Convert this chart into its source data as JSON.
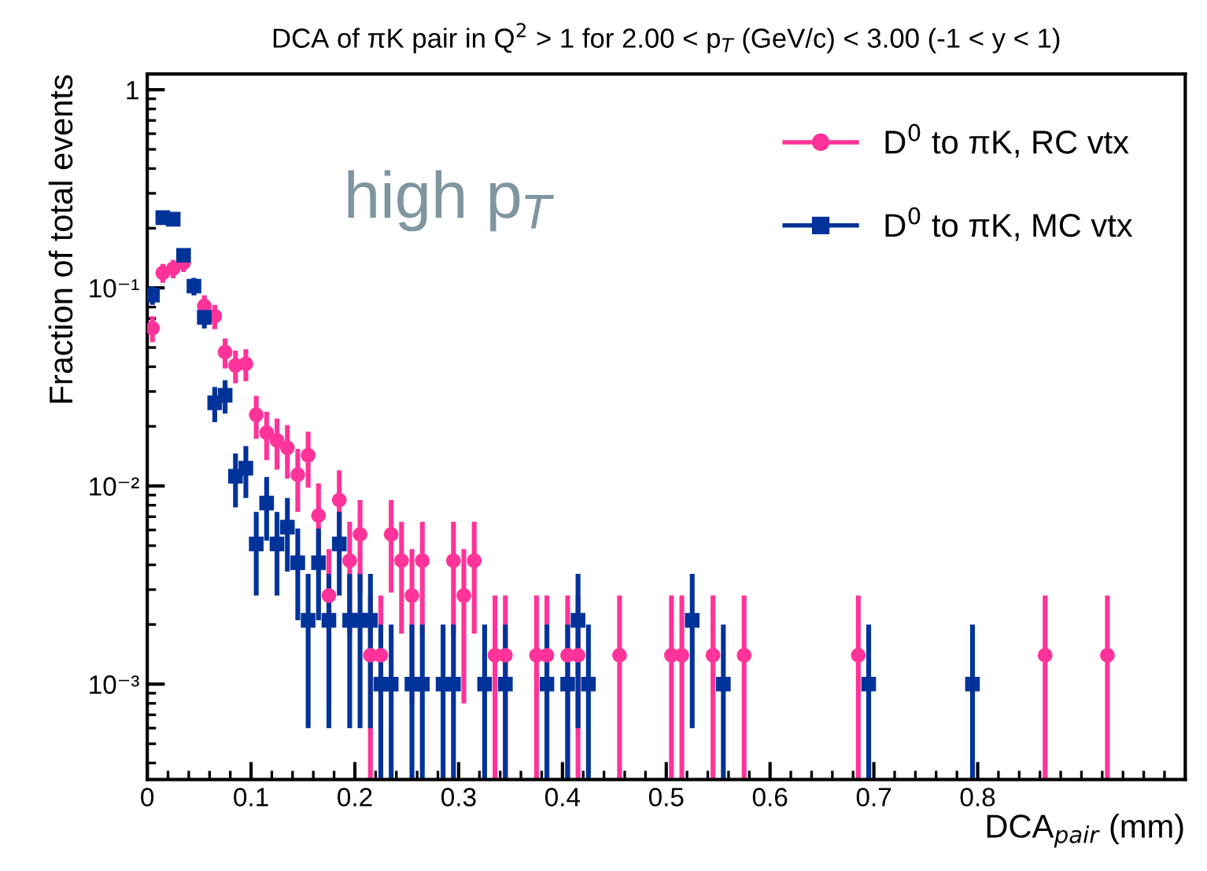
{
  "chart_data": {
    "type": "scatter",
    "title": "DCA of πK pair in Q$^{2}$ > 1 for 2.00 < p$_{T}$ (GeV/c) < 3.00 (-1 < y < 1)",
    "xlabel": "DCA$_{pair}$ (mm)",
    "ylabel": "Fraction of total events",
    "annotations": [
      "high p$_{T}$"
    ],
    "log": "y",
    "grid": false,
    "legend": "top right",
    "xlim": [
      0,
      1.0
    ],
    "xticks": [
      0,
      0.1,
      0.2,
      0.3,
      0.4,
      0.5,
      0.6,
      0.7,
      0.8
    ],
    "ylim": [
      0.00033,
      1.2
    ],
    "yticks": [
      {
        "value": 0.001,
        "label": "10⁻³"
      },
      {
        "value": 0.01,
        "label": "10⁻²"
      },
      {
        "value": 0.1,
        "label": "10⁻¹"
      },
      1
    ],
    "series": [
      {
        "name": "D$^{0}$ to πK, RC vtx",
        "color": "#ff3399",
        "marker": "circle",
        "x": [
          0.005,
          0.015,
          0.025,
          0.035,
          0.055,
          0.065,
          0.075,
          0.085,
          0.095,
          0.105,
          0.115,
          0.125,
          0.135,
          0.145,
          0.155,
          0.165,
          0.175,
          0.185,
          0.195,
          0.205,
          0.215,
          0.225,
          0.235,
          0.245,
          0.255,
          0.265,
          0.295,
          0.305,
          0.315,
          0.335,
          0.345,
          0.375,
          0.385,
          0.405,
          0.415,
          0.455,
          0.505,
          0.515,
          0.545,
          0.575,
          0.685,
          0.865,
          0.925
        ],
        "values": [
          0.0626,
          0.119,
          0.125,
          0.134,
          0.081,
          0.072,
          0.0474,
          0.0406,
          0.0414,
          0.0229,
          0.0186,
          0.017,
          0.0156,
          0.0114,
          0.0143,
          0.0071,
          0.0028,
          0.0085,
          0.0042,
          0.0057,
          0.0014,
          0.0014,
          0.0057,
          0.0042,
          0.0028,
          0.0042,
          0.0042,
          0.0028,
          0.0042,
          0.0014,
          0.0014,
          0.0014,
          0.0014,
          0.0014,
          0.0014,
          0.0014,
          0.0014,
          0.0014,
          0.0014,
          0.0014,
          0.0014,
          0.0014,
          0.0014
        ],
        "errors": [
          0.0094,
          0.013,
          0.0133,
          0.0137,
          0.0107,
          0.0101,
          0.0082,
          0.0076,
          0.0076,
          0.0056,
          0.0051,
          0.0049,
          0.0047,
          0.004,
          0.0045,
          0.0032,
          0.002,
          0.0035,
          0.0024,
          0.0028,
          [
            0.00033,
            0.0028
          ],
          [
            0.00033,
            0.0028
          ],
          0.0028,
          0.0024,
          0.002,
          0.0024,
          0.0024,
          0.002,
          0.0024,
          [
            0.00033,
            0.0028
          ],
          [
            0.00033,
            0.0028
          ],
          [
            0.00033,
            0.0028
          ],
          [
            0.00033,
            0.0028
          ],
          [
            0.00033,
            0.0028
          ],
          [
            0.00033,
            0.0028
          ],
          [
            0.00033,
            0.0028
          ],
          [
            0.00033,
            0.0028
          ],
          [
            0.00033,
            0.0028
          ],
          [
            0.00033,
            0.0028
          ],
          [
            0.00033,
            0.0028
          ],
          [
            0.00033,
            0.0028
          ],
          [
            0.00033,
            0.0028
          ],
          [
            0.00033,
            0.0028
          ]
        ]
      },
      {
        "name": "D$^{0}$ to πK, MC vtx",
        "color": "#003399",
        "marker": "square",
        "x": [
          0.005,
          0.015,
          0.025,
          0.035,
          0.045,
          0.055,
          0.065,
          0.075,
          0.085,
          0.095,
          0.105,
          0.115,
          0.125,
          0.135,
          0.145,
          0.155,
          0.165,
          0.175,
          0.185,
          0.195,
          0.205,
          0.215,
          0.225,
          0.235,
          0.255,
          0.265,
          0.285,
          0.295,
          0.325,
          0.345,
          0.385,
          0.405,
          0.415,
          0.425,
          0.525,
          0.555,
          0.695,
          0.795
        ],
        "values": [
          0.092,
          0.226,
          0.222,
          0.146,
          0.102,
          0.071,
          0.0263,
          0.0287,
          0.0112,
          0.0123,
          0.0051,
          0.0082,
          0.0051,
          0.0062,
          0.0041,
          0.0021,
          0.0041,
          0.0021,
          0.0051,
          0.0021,
          0.0021,
          0.0021,
          0.001,
          0.001,
          0.001,
          0.001,
          0.001,
          0.001,
          0.001,
          0.001,
          0.001,
          0.001,
          0.0021,
          0.001,
          0.0021,
          0.001,
          0.001,
          0.001
        ],
        "errors": [
          0.0098,
          0.015,
          0.015,
          0.0123,
          0.0103,
          0.0086,
          0.0053,
          0.0055,
          0.0034,
          0.0036,
          0.0023,
          0.0029,
          0.0023,
          0.0025,
          0.002,
          0.0015,
          0.002,
          0.0015,
          0.0023,
          0.0015,
          0.0015,
          0.0015,
          [
            0.00033,
            0.002
          ],
          [
            0.00033,
            0.002
          ],
          [
            0.00033,
            0.002
          ],
          [
            0.00033,
            0.002
          ],
          [
            0.00033,
            0.002
          ],
          [
            0.00033,
            0.002
          ],
          [
            0.00033,
            0.002
          ],
          [
            0.00033,
            0.002
          ],
          [
            0.00033,
            0.002
          ],
          [
            0.00033,
            0.002
          ],
          0.0015,
          [
            0.00033,
            0.002
          ],
          0.0015,
          [
            0.00033,
            0.002
          ],
          [
            0.00033,
            0.002
          ],
          [
            0.00033,
            0.002
          ]
        ]
      }
    ]
  }
}
